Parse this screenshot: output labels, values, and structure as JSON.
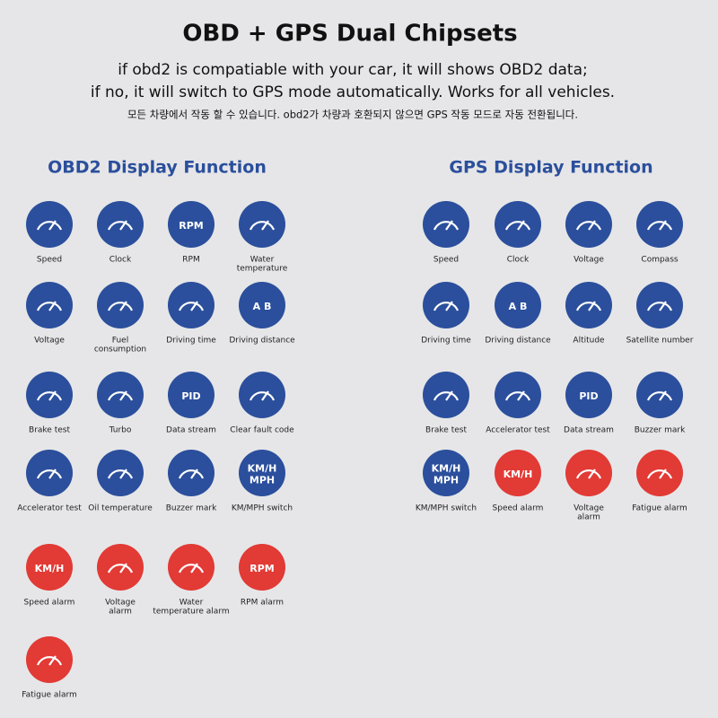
{
  "header": {
    "title": "OBD + GPS Dual Chipsets",
    "lines": [
      "if obd2 is compatiable with your car, it will shows OBD2 data;",
      "if no, it will switch to GPS mode automatically. Works for all vehicles.",
      "모든 차량에서 작동 할 수 있습니다. obd2가 차량과 호환되지 않으면 GPS 작동 모드로 자동 전환됩니다."
    ]
  },
  "sections": [
    {
      "title": "OBD2 Display Function",
      "items": [
        {
          "label": [
            "Speed"
          ],
          "color": "#2b4f9c"
        },
        {
          "label": [
            "Clock"
          ],
          "color": "#2b4f9c"
        },
        {
          "label": [
            "RPM"
          ],
          "icon_text": [
            "RPM"
          ],
          "color": "#2b4f9c"
        },
        {
          "label": [
            "Water",
            "temperature"
          ],
          "color": "#2b4f9c"
        },
        {
          "label": [
            "Voltage"
          ],
          "color": "#2b4f9c"
        },
        {
          "label": [
            "Fuel",
            "consumption"
          ],
          "color": "#2b4f9c"
        },
        {
          "label": [
            "Driving time"
          ],
          "color": "#2b4f9c"
        },
        {
          "label": [
            "Driving distance"
          ],
          "icon_text": [
            "A B"
          ],
          "color": "#2b4f9c"
        },
        {
          "label": [
            "Brake test"
          ],
          "color": "#2b4f9c"
        },
        {
          "label": [
            "Turbo"
          ],
          "color": "#2b4f9c"
        },
        {
          "label": [
            "Data stream"
          ],
          "icon_text": [
            "PID"
          ],
          "color": "#2b4f9c"
        },
        {
          "label": [
            "Clear fault code"
          ],
          "color": "#2b4f9c"
        },
        {
          "label": [
            "Accelerator test"
          ],
          "color": "#2b4f9c"
        },
        {
          "label": [
            "Oil temperature"
          ],
          "color": "#2b4f9c"
        },
        {
          "label": [
            "Buzzer mark"
          ],
          "color": "#2b4f9c"
        },
        {
          "label": [
            "KM/MPH switch"
          ],
          "icon_text": [
            "KM/H",
            "MPH"
          ],
          "color": "#2b4f9c"
        },
        {
          "label": [
            "Speed alarm"
          ],
          "icon_text": [
            "KM/H"
          ],
          "color": "#e23a35"
        },
        {
          "label": [
            "Voltage",
            "alarm"
          ],
          "color": "#e23a35"
        },
        {
          "label": [
            "Water",
            "temperature alarm"
          ],
          "color": "#e23a35"
        },
        {
          "label": [
            "RPM alarm"
          ],
          "icon_text": [
            "RPM"
          ],
          "color": "#e23a35"
        },
        {
          "label": [
            "Fatigue alarm"
          ],
          "color": "#e23a35"
        }
      ]
    },
    {
      "title": "GPS Display Function",
      "items": [
        {
          "label": [
            "Speed"
          ],
          "color": "#2b4f9c"
        },
        {
          "label": [
            "Clock"
          ],
          "color": "#2b4f9c"
        },
        {
          "label": [
            "Voltage"
          ],
          "color": "#2b4f9c"
        },
        {
          "label": [
            "Compass"
          ],
          "color": "#2b4f9c"
        },
        {
          "label": [
            "Driving time"
          ],
          "color": "#2b4f9c"
        },
        {
          "label": [
            "Driving distance"
          ],
          "icon_text": [
            "A B"
          ],
          "color": "#2b4f9c"
        },
        {
          "label": [
            "Altitude"
          ],
          "color": "#2b4f9c"
        },
        {
          "label": [
            "Satellite number"
          ],
          "color": "#2b4f9c"
        },
        {
          "label": [
            "Brake test"
          ],
          "color": "#2b4f9c"
        },
        {
          "label": [
            "Accelerator test"
          ],
          "color": "#2b4f9c"
        },
        {
          "label": [
            "Data stream"
          ],
          "icon_text": [
            "PID"
          ],
          "color": "#2b4f9c"
        },
        {
          "label": [
            "Buzzer mark"
          ],
          "color": "#2b4f9c"
        },
        {
          "label": [
            "KM/MPH switch"
          ],
          "icon_text": [
            "KM/H",
            "MPH"
          ],
          "color": "#2b4f9c"
        },
        {
          "label": [
            "Speed alarm"
          ],
          "icon_text": [
            "KM/H"
          ],
          "color": "#e23a35"
        },
        {
          "label": [
            "Voltage",
            "alarm"
          ],
          "color": "#e23a35"
        },
        {
          "label": [
            "Fatigue alarm"
          ],
          "color": "#e23a35"
        }
      ]
    }
  ]
}
